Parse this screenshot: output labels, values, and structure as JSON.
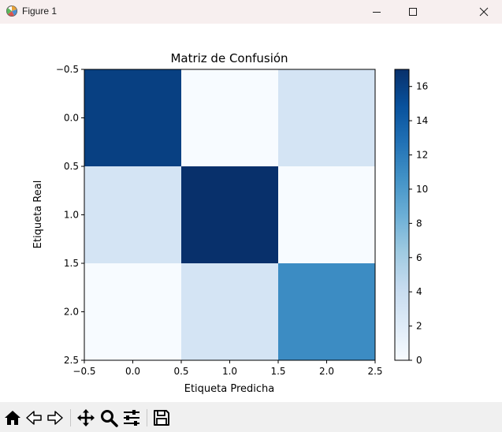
{
  "window": {
    "title": "Figure 1",
    "controls": [
      "minimize",
      "maximize",
      "close"
    ]
  },
  "chart_data": {
    "type": "heatmap",
    "title": "Matriz de Confusión",
    "xlabel": "Etiqueta Predicha",
    "ylabel": "Etiqueta Real",
    "x_ticks": [
      "−0.5",
      "0.0",
      "0.5",
      "1.0",
      "1.5",
      "2.0",
      "2.5"
    ],
    "y_ticks": [
      "−0.5",
      "0.0",
      "0.5",
      "1.0",
      "1.5",
      "2.0",
      "2.5"
    ],
    "matrix": [
      [
        16,
        0,
        3
      ],
      [
        3,
        17,
        0
      ],
      [
        0,
        3,
        11
      ]
    ],
    "colormap": "Blues",
    "color_range": [
      0,
      17
    ],
    "colorbar_ticks": [
      "0",
      "2",
      "4",
      "6",
      "8",
      "10",
      "12",
      "14",
      "16"
    ]
  },
  "toolbar": {
    "tools": [
      {
        "icon": "home-icon"
      },
      {
        "icon": "back-arrow-icon"
      },
      {
        "icon": "forward-arrow-icon"
      },
      {
        "icon": "pan-icon"
      },
      {
        "icon": "zoom-icon"
      },
      {
        "icon": "configure-subplots-icon"
      },
      {
        "icon": "save-icon"
      }
    ]
  }
}
